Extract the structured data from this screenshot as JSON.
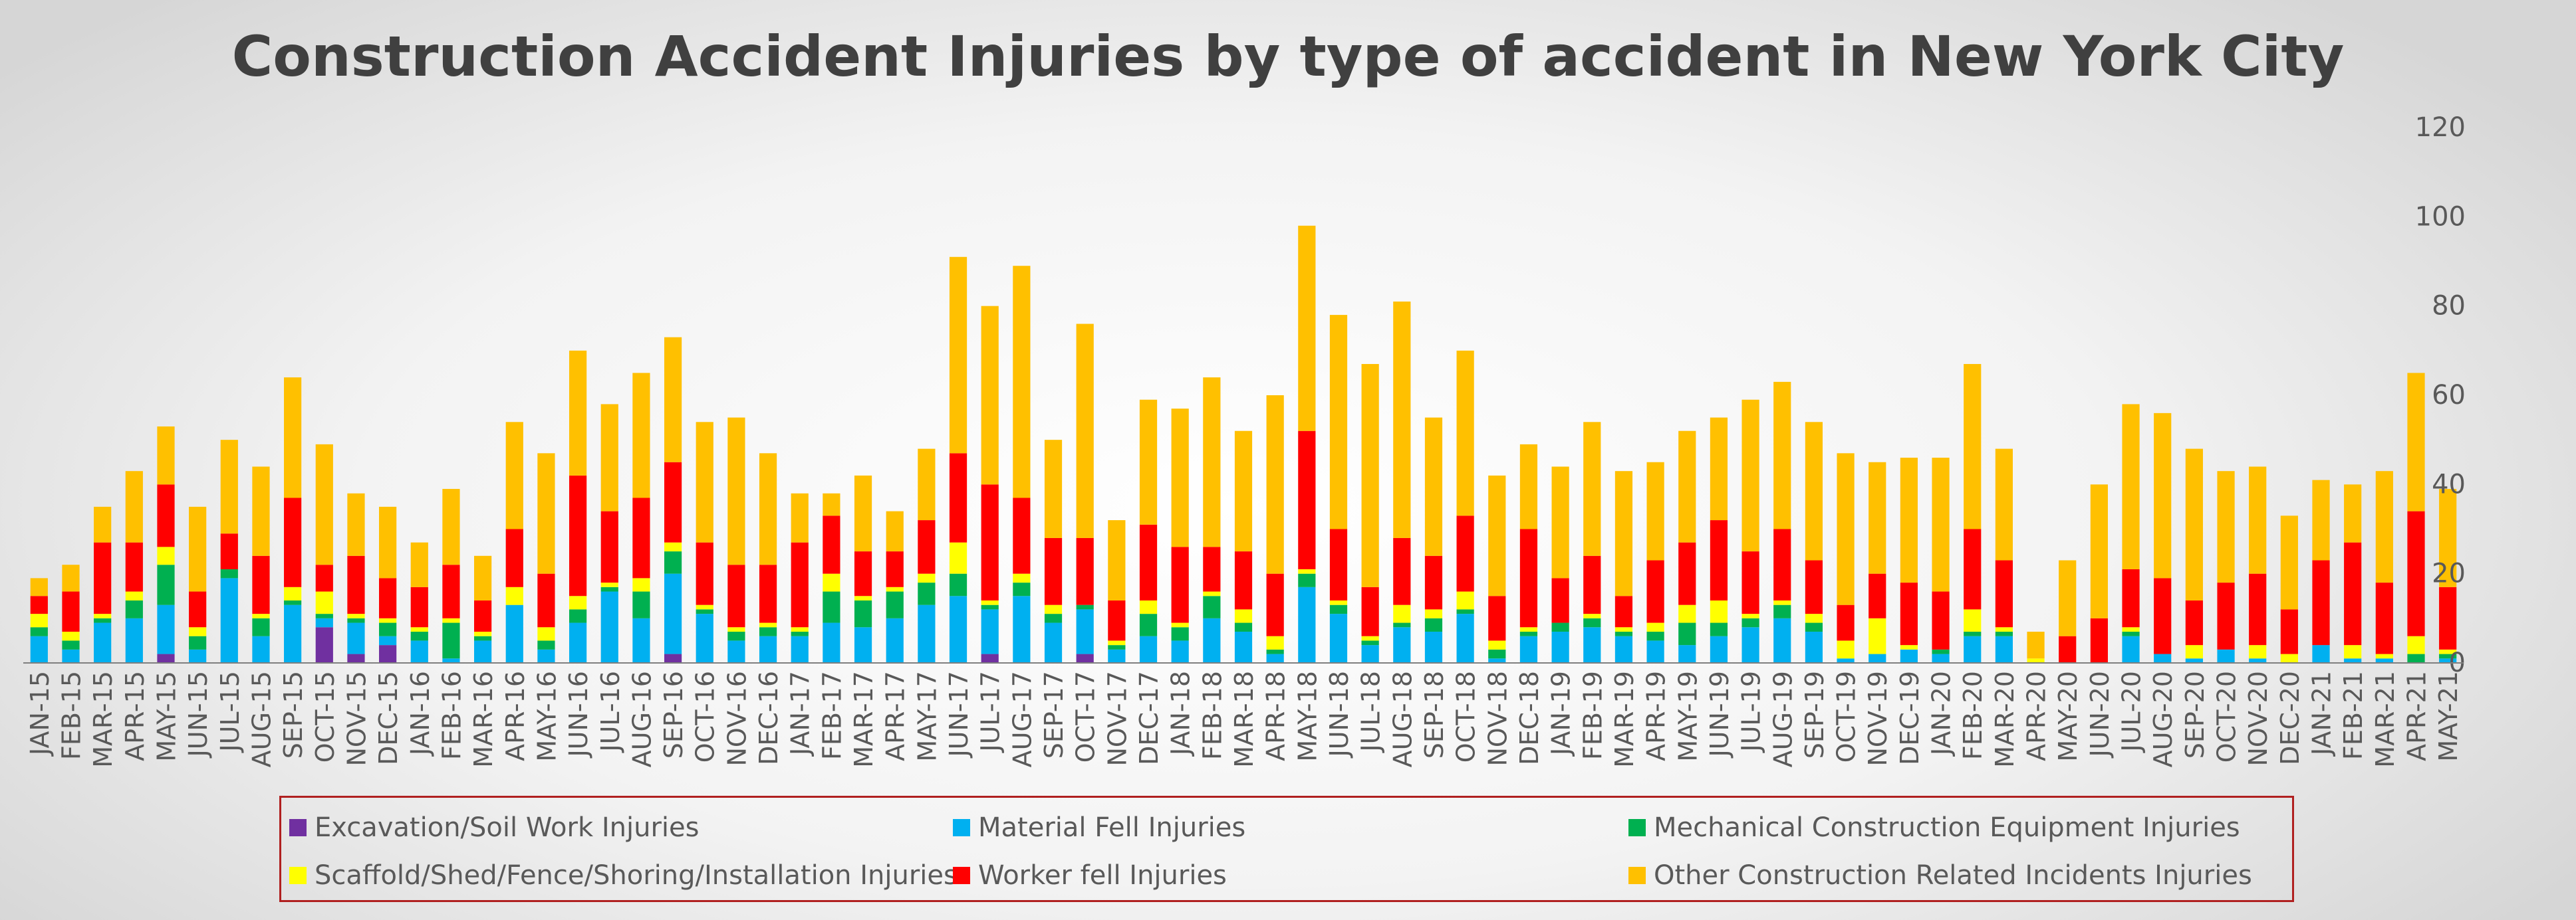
{
  "chart_data": {
    "type": "bar",
    "stacked": true,
    "title": "Construction Accident Injuries by type of accident in New York City",
    "xlabel": "",
    "ylabel": "",
    "ylim": [
      0,
      120
    ],
    "yticks": [
      0,
      20,
      40,
      60,
      80,
      100,
      120
    ],
    "y_axis_position": "right",
    "grid": false,
    "legend_position": "bottom",
    "categories": [
      "JAN-15",
      "FEB-15",
      "MAR-15",
      "APR-15",
      "MAY-15",
      "JUN-15",
      "JUL-15",
      "AUG-15",
      "SEP-15",
      "OCT-15",
      "NOV-15",
      "DEC-15",
      "JAN-16",
      "FEB-16",
      "MAR-16",
      "APR-16",
      "MAY-16",
      "JUN-16",
      "JUL-16",
      "AUG-16",
      "SEP-16",
      "OCT-16",
      "NOV-16",
      "DEC-16",
      "JAN-17",
      "FEB-17",
      "MAR-17",
      "APR-17",
      "MAY-17",
      "JUN-17",
      "JUL-17",
      "AUG-17",
      "SEP-17",
      "OCT-17",
      "NOV-17",
      "DEC-17",
      "JAN-18",
      "FEB-18",
      "MAR-18",
      "APR-18",
      "MAY-18",
      "JUN-18",
      "JUL-18",
      "AUG-18",
      "SEP-18",
      "OCT-18",
      "NOV-18",
      "DEC-18",
      "JAN-19",
      "FEB-19",
      "MAR-19",
      "APR-19",
      "MAY-19",
      "JUN-19",
      "JUL-19",
      "AUG-19",
      "SEP-19",
      "OCT-19",
      "NOV-19",
      "DEC-19",
      "JAN-20",
      "FEB-20",
      "MAR-20",
      "APR-20",
      "MAY-20",
      "JUN-20",
      "JUL-20",
      "AUG-20",
      "SEP-20",
      "OCT-20",
      "NOV-20",
      "DEC-20",
      "JAN-21",
      "FEB-21",
      "MAR-21",
      "APR-21",
      "MAY-21"
    ],
    "series": [
      {
        "name": "Excavation/Soil Work Injuries",
        "color": "#7030a0",
        "values": [
          0,
          0,
          0,
          0,
          2,
          0,
          0,
          0,
          0,
          8,
          2,
          4,
          0,
          0,
          0,
          0,
          0,
          0,
          0,
          0,
          2,
          0,
          0,
          0,
          0,
          0,
          0,
          0,
          0,
          0,
          2,
          0,
          0,
          2,
          0,
          0,
          0,
          0,
          0,
          0,
          0,
          0,
          0,
          0,
          0,
          0,
          0,
          0,
          0,
          0,
          0,
          0,
          0,
          0,
          0,
          0,
          0,
          0,
          0,
          0,
          0,
          0,
          0,
          0,
          0,
          0,
          0,
          0,
          0,
          0,
          0,
          0,
          0,
          0,
          0,
          0,
          0
        ]
      },
      {
        "name": "Material Fell Injuries",
        "color": "#00b0f0",
        "values": [
          6,
          3,
          9,
          10,
          11,
          3,
          19,
          6,
          13,
          2,
          7,
          2,
          5,
          1,
          5,
          13,
          3,
          9,
          16,
          10,
          18,
          11,
          5,
          6,
          6,
          9,
          8,
          10,
          13,
          15,
          10,
          15,
          9,
          10,
          3,
          6,
          5,
          10,
          7,
          2,
          17,
          11,
          4,
          8,
          7,
          11,
          1,
          6,
          7,
          8,
          6,
          5,
          4,
          6,
          8,
          10,
          7,
          1,
          2,
          3,
          2,
          6,
          6,
          0,
          0,
          0,
          6,
          2,
          1,
          3,
          1,
          0,
          4,
          1,
          1,
          0,
          1
        ]
      },
      {
        "name": "Mechanical Construction Equipment Injuries",
        "color": "#00b050",
        "values": [
          2,
          2,
          1,
          4,
          9,
          3,
          2,
          4,
          1,
          1,
          1,
          3,
          2,
          8,
          1,
          0,
          2,
          3,
          1,
          6,
          5,
          1,
          2,
          2,
          1,
          7,
          6,
          6,
          5,
          5,
          1,
          3,
          2,
          1,
          1,
          5,
          3,
          5,
          2,
          1,
          3,
          2,
          1,
          1,
          3,
          1,
          2,
          1,
          2,
          2,
          1,
          2,
          5,
          3,
          2,
          3,
          2,
          0,
          0,
          0,
          1,
          1,
          1,
          0,
          0,
          0,
          1,
          0,
          0,
          0,
          0,
          0,
          0,
          0,
          0,
          2,
          1
        ]
      },
      {
        "name": "Scaffold/Shed/Fence/Shoring/Installation Injuries",
        "color": "#ffff00",
        "values": [
          3,
          2,
          1,
          2,
          4,
          2,
          0,
          1,
          3,
          5,
          1,
          1,
          1,
          1,
          1,
          4,
          3,
          3,
          1,
          3,
          2,
          1,
          1,
          1,
          1,
          4,
          1,
          1,
          2,
          7,
          1,
          2,
          2,
          0,
          1,
          3,
          1,
          1,
          3,
          3,
          1,
          1,
          1,
          4,
          2,
          4,
          2,
          1,
          0,
          1,
          1,
          2,
          4,
          5,
          1,
          1,
          2,
          4,
          8,
          1,
          0,
          5,
          1,
          1,
          0,
          0,
          1,
          0,
          3,
          0,
          3,
          2,
          0,
          3,
          1,
          4,
          1
        ]
      },
      {
        "name": "Worker fell Injuries",
        "color": "#ff0000",
        "values": [
          4,
          9,
          16,
          11,
          14,
          8,
          8,
          13,
          20,
          6,
          13,
          9,
          9,
          12,
          7,
          13,
          12,
          27,
          16,
          18,
          18,
          14,
          14,
          13,
          19,
          13,
          10,
          8,
          12,
          20,
          26,
          17,
          15,
          15,
          9,
          17,
          17,
          10,
          13,
          14,
          31,
          16,
          11,
          15,
          12,
          17,
          10,
          22,
          10,
          13,
          7,
          14,
          14,
          18,
          14,
          16,
          12,
          8,
          10,
          14,
          13,
          18,
          15,
          0,
          6,
          10,
          13,
          17,
          10,
          15,
          16,
          10,
          19,
          23,
          16,
          28,
          14
        ]
      },
      {
        "name": "Other Construction Related Incidents Injuries",
        "color": "#ffc000",
        "values": [
          4,
          6,
          8,
          16,
          13,
          19,
          21,
          20,
          27,
          27,
          14,
          16,
          10,
          17,
          10,
          24,
          27,
          28,
          24,
          28,
          28,
          27,
          33,
          25,
          11,
          5,
          17,
          9,
          16,
          44,
          40,
          52,
          22,
          48,
          18,
          28,
          31,
          38,
          27,
          40,
          46,
          48,
          50,
          53,
          31,
          37,
          27,
          19,
          25,
          30,
          28,
          22,
          25,
          23,
          34,
          33,
          31,
          34,
          25,
          28,
          30,
          37,
          25,
          6,
          17,
          30,
          37,
          37,
          34,
          25,
          24,
          21,
          18,
          13,
          25,
          31,
          22
        ]
      }
    ]
  }
}
